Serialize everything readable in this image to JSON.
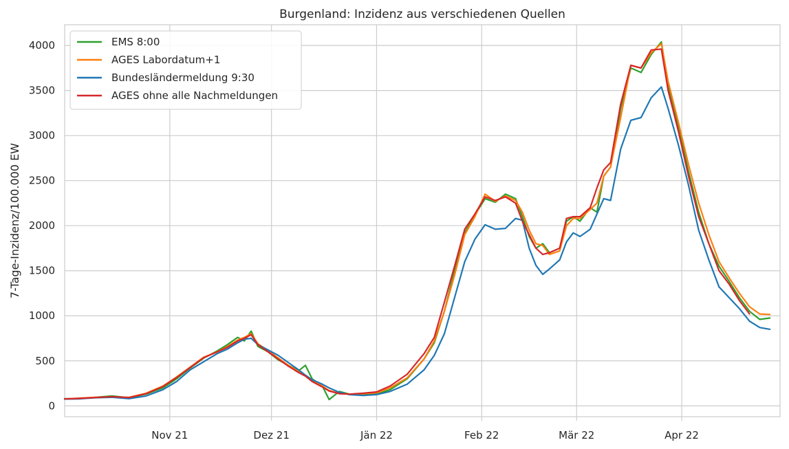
{
  "chart_data": {
    "type": "line",
    "title": "Burgenland: Inzidenz aus verschiedenen Quellen",
    "xlabel": "",
    "ylabel": "7-Tage-Inzidenz/100.000 EW",
    "x_start": "2021-10-01",
    "x_end": "2022-04-30",
    "ylim": [
      -120,
      4230
    ],
    "yticks": [
      0,
      500,
      1000,
      1500,
      2000,
      2500,
      3000,
      3500,
      4000
    ],
    "xticks": [
      {
        "date": "2021-11-01",
        "label": "Nov 21"
      },
      {
        "date": "2021-12-01",
        "label": "Dez 21"
      },
      {
        "date": "2022-01-01",
        "label": "Jän 22"
      },
      {
        "date": "2022-02-01",
        "label": "Feb 22"
      },
      {
        "date": "2022-03-01",
        "label": "Mär 22"
      },
      {
        "date": "2022-04-01",
        "label": "Apr 22"
      }
    ],
    "grid": true,
    "legend_position": "top-left",
    "colors": {
      "background": "#ffffff",
      "grid": "#cccccc",
      "axes": "#cccccc",
      "text": "#262626"
    },
    "series": [
      {
        "name": "EMS 8:00",
        "color": "#2ca02c",
        "points": [
          [
            "2021-10-01",
            80
          ],
          [
            "2021-10-05",
            80
          ],
          [
            "2021-10-10",
            95
          ],
          [
            "2021-10-15",
            110
          ],
          [
            "2021-10-20",
            90
          ],
          [
            "2021-10-25",
            130
          ],
          [
            "2021-10-30",
            200
          ],
          [
            "2021-11-03",
            300
          ],
          [
            "2021-11-07",
            420
          ],
          [
            "2021-11-11",
            530
          ],
          [
            "2021-11-15",
            610
          ],
          [
            "2021-11-18",
            680
          ],
          [
            "2021-11-21",
            760
          ],
          [
            "2021-11-23",
            720
          ],
          [
            "2021-11-25",
            830
          ],
          [
            "2021-11-27",
            660
          ],
          [
            "2021-11-30",
            600
          ],
          [
            "2021-12-03",
            510
          ],
          [
            "2021-12-06",
            450
          ],
          [
            "2021-12-09",
            390
          ],
          [
            "2021-12-11",
            450
          ],
          [
            "2021-12-13",
            300
          ],
          [
            "2021-12-16",
            220
          ],
          [
            "2021-12-18",
            70
          ],
          [
            "2021-12-21",
            160
          ],
          [
            "2021-12-24",
            130
          ],
          [
            "2021-12-28",
            125
          ],
          [
            "2022-01-01",
            130
          ],
          [
            "2022-01-05",
            180
          ],
          [
            "2022-01-10",
            300
          ],
          [
            "2022-01-15",
            520
          ],
          [
            "2022-01-18",
            700
          ],
          [
            "2022-01-21",
            1050
          ],
          [
            "2022-01-24",
            1500
          ],
          [
            "2022-01-27",
            1920
          ],
          [
            "2022-01-30",
            2120
          ],
          [
            "2022-02-02",
            2300
          ],
          [
            "2022-02-05",
            2260
          ],
          [
            "2022-02-08",
            2350
          ],
          [
            "2022-02-11",
            2300
          ],
          [
            "2022-02-13",
            2100
          ],
          [
            "2022-02-15",
            1880
          ],
          [
            "2022-02-17",
            1750
          ],
          [
            "2022-02-19",
            1800
          ],
          [
            "2022-02-21",
            1700
          ],
          [
            "2022-02-24",
            1750
          ],
          [
            "2022-02-26",
            2050
          ],
          [
            "2022-02-28",
            2100
          ],
          [
            "2022-03-02",
            2050
          ],
          [
            "2022-03-05",
            2200
          ],
          [
            "2022-03-07",
            2150
          ],
          [
            "2022-03-09",
            2550
          ],
          [
            "2022-03-11",
            2650
          ],
          [
            "2022-03-14",
            3300
          ],
          [
            "2022-03-17",
            3750
          ],
          [
            "2022-03-20",
            3700
          ],
          [
            "2022-03-23",
            3900
          ],
          [
            "2022-03-26",
            4040
          ],
          [
            "2022-03-28",
            3550
          ],
          [
            "2022-03-31",
            3100
          ],
          [
            "2022-04-03",
            2600
          ],
          [
            "2022-04-06",
            2150
          ],
          [
            "2022-04-09",
            1800
          ],
          [
            "2022-04-12",
            1550
          ],
          [
            "2022-04-15",
            1380
          ],
          [
            "2022-04-18",
            1200
          ],
          [
            "2022-04-21",
            1050
          ],
          [
            "2022-04-24",
            960
          ],
          [
            "2022-04-27",
            975
          ]
        ]
      },
      {
        "name": "AGES Labordatum+1",
        "color": "#ff7f0e",
        "points": [
          [
            "2021-10-01",
            75
          ],
          [
            "2021-10-05",
            85
          ],
          [
            "2021-10-10",
            95
          ],
          [
            "2021-10-15",
            100
          ],
          [
            "2021-10-20",
            95
          ],
          [
            "2021-10-25",
            140
          ],
          [
            "2021-10-30",
            220
          ],
          [
            "2021-11-03",
            320
          ],
          [
            "2021-11-07",
            430
          ],
          [
            "2021-11-11",
            540
          ],
          [
            "2021-11-15",
            600
          ],
          [
            "2021-11-18",
            660
          ],
          [
            "2021-11-21",
            730
          ],
          [
            "2021-11-23",
            760
          ],
          [
            "2021-11-25",
            800
          ],
          [
            "2021-11-27",
            690
          ],
          [
            "2021-11-30",
            610
          ],
          [
            "2021-12-03",
            530
          ],
          [
            "2021-12-06",
            450
          ],
          [
            "2021-12-09",
            380
          ],
          [
            "2021-12-11",
            340
          ],
          [
            "2021-12-13",
            280
          ],
          [
            "2021-12-16",
            220
          ],
          [
            "2021-12-18",
            170
          ],
          [
            "2021-12-21",
            140
          ],
          [
            "2021-12-24",
            130
          ],
          [
            "2021-12-28",
            135
          ],
          [
            "2022-01-01",
            145
          ],
          [
            "2022-01-05",
            200
          ],
          [
            "2022-01-10",
            310
          ],
          [
            "2022-01-15",
            520
          ],
          [
            "2022-01-18",
            720
          ],
          [
            "2022-01-21",
            1050
          ],
          [
            "2022-01-24",
            1450
          ],
          [
            "2022-01-27",
            1900
          ],
          [
            "2022-01-30",
            2100
          ],
          [
            "2022-02-02",
            2350
          ],
          [
            "2022-02-05",
            2270
          ],
          [
            "2022-02-08",
            2330
          ],
          [
            "2022-02-11",
            2280
          ],
          [
            "2022-02-13",
            2150
          ],
          [
            "2022-02-15",
            1950
          ],
          [
            "2022-02-17",
            1800
          ],
          [
            "2022-02-19",
            1780
          ],
          [
            "2022-02-21",
            1680
          ],
          [
            "2022-02-24",
            1720
          ],
          [
            "2022-02-26",
            2000
          ],
          [
            "2022-02-28",
            2080
          ],
          [
            "2022-03-02",
            2080
          ],
          [
            "2022-03-05",
            2180
          ],
          [
            "2022-03-07",
            2250
          ],
          [
            "2022-03-09",
            2550
          ],
          [
            "2022-03-11",
            2650
          ],
          [
            "2022-03-14",
            3200
          ],
          [
            "2022-03-17",
            3780
          ],
          [
            "2022-03-20",
            3750
          ],
          [
            "2022-03-23",
            3920
          ],
          [
            "2022-03-26",
            4020
          ],
          [
            "2022-03-28",
            3600
          ],
          [
            "2022-03-31",
            3150
          ],
          [
            "2022-04-03",
            2680
          ],
          [
            "2022-04-06",
            2250
          ],
          [
            "2022-04-09",
            1900
          ],
          [
            "2022-04-12",
            1600
          ],
          [
            "2022-04-15",
            1420
          ],
          [
            "2022-04-18",
            1250
          ],
          [
            "2022-04-21",
            1100
          ],
          [
            "2022-04-24",
            1020
          ],
          [
            "2022-04-27",
            1015
          ]
        ]
      },
      {
        "name": "Bundesländermeldung 9:30",
        "color": "#1f77b4",
        "points": [
          [
            "2021-10-01",
            75
          ],
          [
            "2021-10-05",
            78
          ],
          [
            "2021-10-10",
            90
          ],
          [
            "2021-10-15",
            95
          ],
          [
            "2021-10-20",
            80
          ],
          [
            "2021-10-25",
            110
          ],
          [
            "2021-10-30",
            180
          ],
          [
            "2021-11-03",
            270
          ],
          [
            "2021-11-07",
            400
          ],
          [
            "2021-11-11",
            490
          ],
          [
            "2021-11-15",
            580
          ],
          [
            "2021-11-18",
            630
          ],
          [
            "2021-11-21",
            700
          ],
          [
            "2021-11-23",
            740
          ],
          [
            "2021-11-25",
            750
          ],
          [
            "2021-11-27",
            680
          ],
          [
            "2021-11-30",
            620
          ],
          [
            "2021-12-03",
            560
          ],
          [
            "2021-12-06",
            480
          ],
          [
            "2021-12-09",
            400
          ],
          [
            "2021-12-11",
            340
          ],
          [
            "2021-12-13",
            290
          ],
          [
            "2021-12-16",
            240
          ],
          [
            "2021-12-18",
            200
          ],
          [
            "2021-12-21",
            150
          ],
          [
            "2021-12-24",
            125
          ],
          [
            "2021-12-28",
            115
          ],
          [
            "2022-01-01",
            125
          ],
          [
            "2022-01-05",
            160
          ],
          [
            "2022-01-10",
            240
          ],
          [
            "2022-01-15",
            400
          ],
          [
            "2022-01-18",
            560
          ],
          [
            "2022-01-21",
            800
          ],
          [
            "2022-01-24",
            1200
          ],
          [
            "2022-01-27",
            1600
          ],
          [
            "2022-01-30",
            1850
          ],
          [
            "2022-02-02",
            2010
          ],
          [
            "2022-02-05",
            1960
          ],
          [
            "2022-02-08",
            1970
          ],
          [
            "2022-02-11",
            2080
          ],
          [
            "2022-02-13",
            2060
          ],
          [
            "2022-02-15",
            1750
          ],
          [
            "2022-02-17",
            1560
          ],
          [
            "2022-02-19",
            1460
          ],
          [
            "2022-02-21",
            1520
          ],
          [
            "2022-02-24",
            1620
          ],
          [
            "2022-02-26",
            1820
          ],
          [
            "2022-02-28",
            1920
          ],
          [
            "2022-03-02",
            1880
          ],
          [
            "2022-03-05",
            1960
          ],
          [
            "2022-03-07",
            2130
          ],
          [
            "2022-03-09",
            2300
          ],
          [
            "2022-03-11",
            2280
          ],
          [
            "2022-03-14",
            2850
          ],
          [
            "2022-03-17",
            3170
          ],
          [
            "2022-03-20",
            3200
          ],
          [
            "2022-03-23",
            3420
          ],
          [
            "2022-03-26",
            3540
          ],
          [
            "2022-03-28",
            3300
          ],
          [
            "2022-03-31",
            2900
          ],
          [
            "2022-04-03",
            2450
          ],
          [
            "2022-04-06",
            1950
          ],
          [
            "2022-04-09",
            1620
          ],
          [
            "2022-04-12",
            1320
          ],
          [
            "2022-04-15",
            1200
          ],
          [
            "2022-04-18",
            1080
          ],
          [
            "2022-04-21",
            940
          ],
          [
            "2022-04-24",
            870
          ],
          [
            "2022-04-27",
            850
          ]
        ]
      },
      {
        "name": "AGES ohne alle Nachmeldungen",
        "color": "#d62728",
        "points": [
          [
            "2021-10-01",
            78
          ],
          [
            "2021-10-05",
            82
          ],
          [
            "2021-10-10",
            92
          ],
          [
            "2021-10-15",
            102
          ],
          [
            "2021-10-20",
            92
          ],
          [
            "2021-10-25",
            135
          ],
          [
            "2021-10-30",
            215
          ],
          [
            "2021-11-03",
            315
          ],
          [
            "2021-11-07",
            425
          ],
          [
            "2021-11-11",
            535
          ],
          [
            "2021-11-15",
            600
          ],
          [
            "2021-11-18",
            650
          ],
          [
            "2021-11-21",
            720
          ],
          [
            "2021-11-23",
            750
          ],
          [
            "2021-11-25",
            790
          ],
          [
            "2021-11-27",
            680
          ],
          [
            "2021-11-30",
            600
          ],
          [
            "2021-12-03",
            520
          ],
          [
            "2021-12-06",
            440
          ],
          [
            "2021-12-09",
            370
          ],
          [
            "2021-12-11",
            330
          ],
          [
            "2021-12-13",
            270
          ],
          [
            "2021-12-16",
            210
          ],
          [
            "2021-12-18",
            165
          ],
          [
            "2021-12-21",
            135
          ],
          [
            "2021-12-24",
            130
          ],
          [
            "2021-12-28",
            140
          ],
          [
            "2022-01-01",
            155
          ],
          [
            "2022-01-05",
            220
          ],
          [
            "2022-01-10",
            350
          ],
          [
            "2022-01-15",
            580
          ],
          [
            "2022-01-18",
            760
          ],
          [
            "2022-01-21",
            1150
          ],
          [
            "2022-01-24",
            1550
          ],
          [
            "2022-01-27",
            1960
          ],
          [
            "2022-01-30",
            2130
          ],
          [
            "2022-02-02",
            2320
          ],
          [
            "2022-02-05",
            2280
          ],
          [
            "2022-02-08",
            2320
          ],
          [
            "2022-02-11",
            2250
          ],
          [
            "2022-02-13",
            2050
          ],
          [
            "2022-02-15",
            1900
          ],
          [
            "2022-02-17",
            1750
          ],
          [
            "2022-02-19",
            1680
          ],
          [
            "2022-02-21",
            1700
          ],
          [
            "2022-02-24",
            1750
          ],
          [
            "2022-02-26",
            2080
          ],
          [
            "2022-02-28",
            2100
          ],
          [
            "2022-03-02",
            2100
          ],
          [
            "2022-03-05",
            2200
          ],
          [
            "2022-03-07",
            2420
          ],
          [
            "2022-03-09",
            2620
          ],
          [
            "2022-03-11",
            2700
          ],
          [
            "2022-03-14",
            3350
          ],
          [
            "2022-03-17",
            3780
          ],
          [
            "2022-03-20",
            3750
          ],
          [
            "2022-03-23",
            3950
          ],
          [
            "2022-03-26",
            3960
          ],
          [
            "2022-03-28",
            3500
          ],
          [
            "2022-03-31",
            3050
          ],
          [
            "2022-04-03",
            2550
          ],
          [
            "2022-04-06",
            2100
          ],
          [
            "2022-04-09",
            1800
          ],
          [
            "2022-04-12",
            1500
          ],
          [
            "2022-04-15",
            1350
          ],
          [
            "2022-04-18",
            1170
          ],
          [
            "2022-04-21",
            1020
          ]
        ]
      }
    ]
  }
}
